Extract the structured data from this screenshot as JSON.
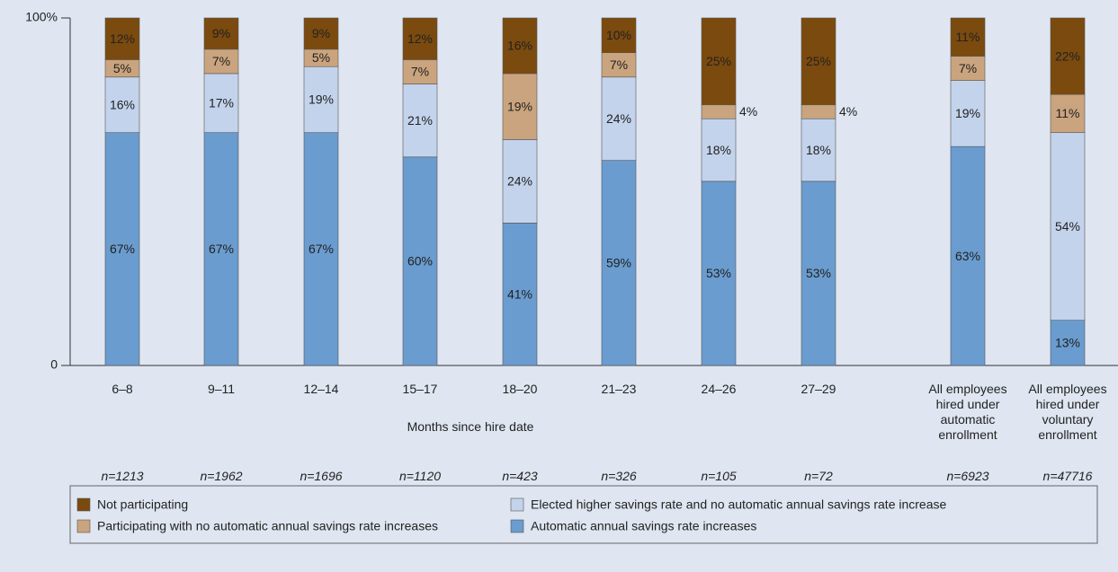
{
  "chart_data": {
    "type": "stacked_bar",
    "categories": [
      "6–8",
      "9–11",
      "12–14",
      "15–17",
      "18–20",
      "21–23",
      "24–26",
      "27–29",
      "All employees\nhired under\nautomatic\nenrollment",
      "All employees\nhired under\nvoluntary\nenrollment"
    ],
    "sample_sizes": [
      "n=1213",
      "n=1962",
      "n=1696",
      "n=1120",
      "n=423",
      "n=326",
      "n=105",
      "n=72",
      "n=6923",
      "n=47716"
    ],
    "x_label": "Months since hire date",
    "ylim": [
      0,
      100
    ],
    "yticks": [
      0,
      {
        "value": 100,
        "label": "100%"
      }
    ],
    "series": [
      {
        "name": "Automatic annual savings rate increases",
        "color": "#6a9ccf",
        "values": [
          67,
          67,
          67,
          60,
          41,
          59,
          53,
          53,
          63,
          13
        ],
        "value_labels": [
          "67%",
          "67%",
          "67%",
          "60%",
          "41%",
          "59%",
          "53%",
          "53%",
          "63%",
          "13%"
        ]
      },
      {
        "name": "Elected higher savings rate and no automatic annual savings rate increase",
        "color": "#c3d3ec",
        "values": [
          16,
          17,
          19,
          21,
          24,
          24,
          18,
          18,
          19,
          54
        ],
        "value_labels": [
          "16%",
          "17%",
          "19%",
          "21%",
          "24%",
          "24%",
          "18%",
          "18%",
          "19%",
          "54%"
        ]
      },
      {
        "name": "Participating with no automatic annual savings rate increases",
        "color": "#caa47e",
        "values": [
          5,
          7,
          5,
          7,
          19,
          7,
          4,
          4,
          7,
          11
        ],
        "value_labels": [
          "5%",
          "7%",
          "5%",
          "7%",
          "19%",
          "7%",
          "4%",
          "4%",
          "7%",
          "11%"
        ]
      },
      {
        "name": "Not participating",
        "color": "#7b4a0e",
        "values": [
          12,
          9,
          9,
          12,
          16,
          10,
          25,
          25,
          11,
          22
        ],
        "value_labels": [
          "12%",
          "9%",
          "9%",
          "12%",
          "16%",
          "10%",
          "25%",
          "25%",
          "11%",
          "22%"
        ]
      }
    ]
  }
}
